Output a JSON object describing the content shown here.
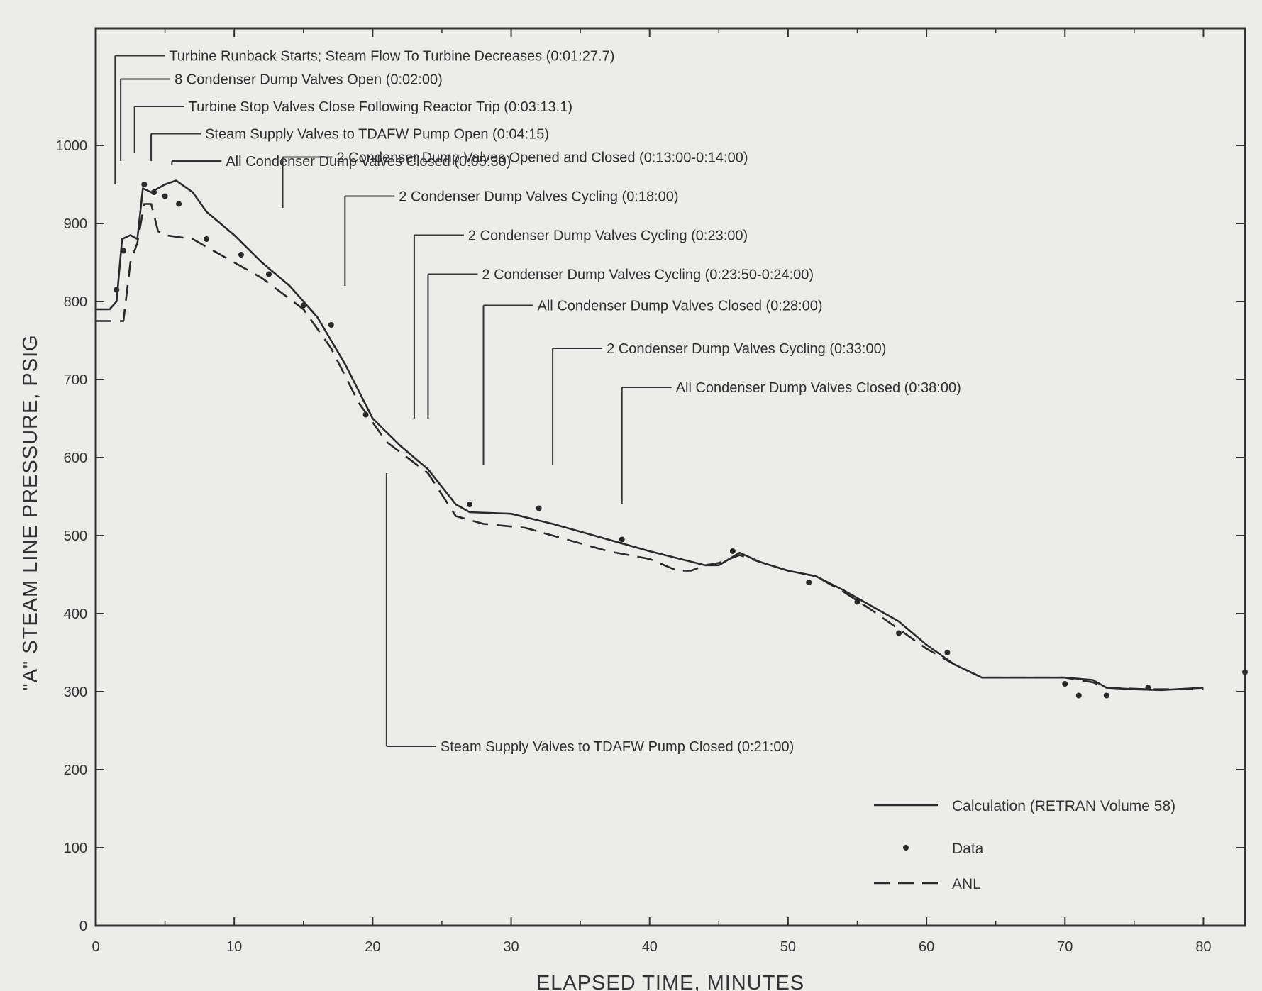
{
  "chart_data": {
    "type": "line",
    "title": "",
    "xlabel": "ELAPSED TIME, MINUTES",
    "ylabel": "\"A\" STEAM LINE PRESSURE, PSIG",
    "xlim": [
      0,
      83
    ],
    "ylim": [
      0,
      1150
    ],
    "xticks": [
      0,
      10,
      20,
      30,
      40,
      50,
      60,
      70,
      80
    ],
    "yticks": [
      0,
      100,
      200,
      300,
      400,
      500,
      600,
      700,
      800,
      900,
      1000
    ],
    "xtick_labels": [
      "0",
      "10",
      "20",
      "30",
      "40",
      "50",
      "60",
      "70",
      "80"
    ],
    "ytick_labels": [
      "0",
      "100",
      "200",
      "300",
      "400",
      "500",
      "600",
      "700",
      "800",
      "900",
      "1000"
    ],
    "legend_position": "bottom-right",
    "series": [
      {
        "name": "Calculation (RETRAN Volume 58)",
        "style": "solid",
        "color": "#2a2a2a",
        "points": [
          [
            0,
            790
          ],
          [
            1,
            790
          ],
          [
            1.5,
            800
          ],
          [
            1.9,
            880
          ],
          [
            2.5,
            885
          ],
          [
            3,
            880
          ],
          [
            3.4,
            945
          ],
          [
            4,
            940
          ],
          [
            5,
            950
          ],
          [
            5.8,
            955
          ],
          [
            7,
            940
          ],
          [
            8,
            915
          ],
          [
            10,
            885
          ],
          [
            12,
            850
          ],
          [
            14,
            820
          ],
          [
            16,
            780
          ],
          [
            18,
            720
          ],
          [
            20,
            650
          ],
          [
            22,
            615
          ],
          [
            24,
            585
          ],
          [
            26,
            540
          ],
          [
            27,
            530
          ],
          [
            30,
            528
          ],
          [
            33,
            515
          ],
          [
            36,
            500
          ],
          [
            40,
            480
          ],
          [
            44,
            462
          ],
          [
            45,
            462
          ],
          [
            46.5,
            478
          ],
          [
            48,
            466
          ],
          [
            50,
            455
          ],
          [
            52,
            448
          ],
          [
            54,
            430
          ],
          [
            56,
            410
          ],
          [
            58,
            390
          ],
          [
            60,
            360
          ],
          [
            62,
            335
          ],
          [
            64,
            318
          ],
          [
            66,
            318
          ],
          [
            70,
            318
          ],
          [
            72,
            315
          ],
          [
            73,
            305
          ],
          [
            75,
            303
          ],
          [
            77,
            302
          ],
          [
            78,
            303
          ],
          [
            80,
            305
          ]
        ]
      },
      {
        "name": "Data",
        "style": "markers",
        "color": "#2a2a2a",
        "points": [
          [
            1.5,
            815
          ],
          [
            2,
            865
          ],
          [
            3.5,
            950
          ],
          [
            4.2,
            940
          ],
          [
            5,
            935
          ],
          [
            6,
            925
          ],
          [
            8,
            880
          ],
          [
            10.5,
            860
          ],
          [
            12.5,
            835
          ],
          [
            15,
            795
          ],
          [
            17,
            770
          ],
          [
            19.5,
            655
          ],
          [
            27,
            540
          ],
          [
            32,
            535
          ],
          [
            38,
            495
          ],
          [
            46,
            480
          ],
          [
            51.5,
            440
          ],
          [
            55,
            415
          ],
          [
            58,
            375
          ],
          [
            61.5,
            350
          ],
          [
            70,
            310
          ],
          [
            71,
            295
          ],
          [
            73,
            295
          ],
          [
            76,
            305
          ],
          [
            83,
            325
          ]
        ]
      },
      {
        "name": "ANL",
        "style": "dashed",
        "color": "#2a2a2a",
        "points": [
          [
            0,
            775
          ],
          [
            1,
            775
          ],
          [
            2,
            775
          ],
          [
            2.5,
            850
          ],
          [
            3,
            875
          ],
          [
            3.5,
            925
          ],
          [
            4,
            925
          ],
          [
            4.5,
            890
          ],
          [
            5,
            885
          ],
          [
            7,
            880
          ],
          [
            9,
            860
          ],
          [
            12,
            830
          ],
          [
            15,
            790
          ],
          [
            17,
            740
          ],
          [
            19,
            670
          ],
          [
            21,
            620
          ],
          [
            24,
            580
          ],
          [
            26,
            525
          ],
          [
            28,
            515
          ],
          [
            31,
            510
          ],
          [
            34,
            495
          ],
          [
            37,
            480
          ],
          [
            40,
            470
          ],
          [
            42,
            455
          ],
          [
            43,
            455
          ],
          [
            44,
            462
          ],
          [
            45,
            465
          ],
          [
            46.5,
            475
          ],
          [
            48,
            466
          ],
          [
            50,
            455
          ],
          [
            52,
            448
          ],
          [
            54,
            428
          ],
          [
            56,
            405
          ],
          [
            58,
            380
          ],
          [
            60,
            355
          ],
          [
            62,
            335
          ],
          [
            64,
            318
          ],
          [
            66,
            318
          ],
          [
            70,
            318
          ],
          [
            72,
            312
          ],
          [
            73,
            305
          ],
          [
            76,
            303
          ],
          [
            80,
            303
          ]
        ]
      }
    ],
    "annotations": [
      {
        "text": "Turbine Runback Starts; Steam Flow To Turbine Decreases (0:01:27.7)",
        "x": 1.4,
        "y_line_end": 950,
        "y_label": 1115
      },
      {
        "text": "8 Condenser Dump Valves Open (0:02:00)",
        "x": 1.8,
        "y_line_end": 980,
        "y_label": 1085
      },
      {
        "text": "Turbine Stop Valves Close Following Reactor Trip (0:03:13.1)",
        "x": 2.8,
        "y_line_end": 990,
        "y_label": 1050
      },
      {
        "text": "Steam Supply Valves to TDAFW Pump Open (0:04:15)",
        "x": 4,
        "y_line_end": 980,
        "y_label": 1015
      },
      {
        "text": "All Condenser Dump Valves Closed (0:05:30)",
        "x": 5.5,
        "y_line_end": 975,
        "y_label": 980
      },
      {
        "text": "2 Condenser Dump Valves Opened and Closed (0:13:00-0:14:00)",
        "x": 13.5,
        "y_line_end": 920,
        "y_label": 985
      },
      {
        "text": "2 Condenser Dump Valves Cycling (0:18:00)",
        "x": 18,
        "y_line_end": 820,
        "y_label": 935
      },
      {
        "text": "2 Condenser Dump Valves Cycling (0:23:00)",
        "x": 23,
        "y_line_end": 650,
        "y_label": 885
      },
      {
        "text": "2 Condenser Dump Valves Cycling (0:23:50-0:24:00)",
        "x": 24,
        "y_line_end": 650,
        "y_label": 835
      },
      {
        "text": "All Condenser Dump Valves Closed (0:28:00)",
        "x": 28,
        "y_line_end": 590,
        "y_label": 795
      },
      {
        "text": "2 Condenser Dump Valves Cycling (0:33:00)",
        "x": 33,
        "y_line_end": 590,
        "y_label": 740
      },
      {
        "text": "All Condenser Dump Valves Closed (0:38:00)",
        "x": 38,
        "y_line_end": 540,
        "y_label": 690
      },
      {
        "text": "Steam Supply Valves to TDAFW Pump Closed (0:21:00)",
        "x": 21,
        "y_line_end": 580,
        "y_label": 230
      }
    ]
  }
}
